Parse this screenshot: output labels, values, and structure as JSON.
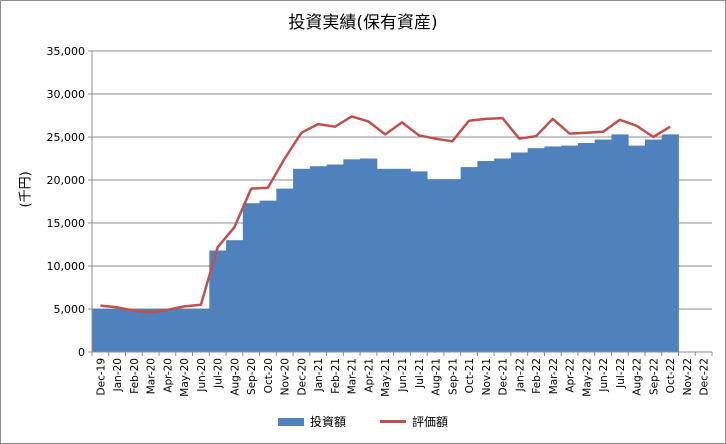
{
  "chart_data": {
    "type": "bar",
    "title": "投資実績(保有資産)",
    "ylabel": "(千円)",
    "xlabel": "",
    "ylim": [
      0,
      35000
    ],
    "yticks": [
      0,
      5000,
      10000,
      15000,
      20000,
      25000,
      30000,
      35000
    ],
    "ytick_labels": [
      "0",
      "5,000",
      "10,000",
      "15,000",
      "20,000",
      "25,000",
      "30,000",
      "35,000"
    ],
    "grid": true,
    "legend_position": "bottom",
    "categories": [
      "Dec-19",
      "Jan-20",
      "Feb-20",
      "Mar-20",
      "Apr-20",
      "May-20",
      "Jun-20",
      "Jul-20",
      "Aug-20",
      "Sep-20",
      "Oct-20",
      "Nov-20",
      "Dec-20",
      "Jan-21",
      "Feb-21",
      "Mar-21",
      "Apr-21",
      "May-21",
      "Jun-21",
      "Jul-21",
      "Aug-21",
      "Sep-21",
      "Oct-21",
      "Nov-21",
      "Dec-21",
      "Jan-22",
      "Feb-22",
      "Mar-22",
      "Apr-22",
      "May-22",
      "Jun-22",
      "Jul-22",
      "Aug-22",
      "Sep-22",
      "Oct-22",
      "Nov-22",
      "Dec-22"
    ],
    "series": [
      {
        "name": "投資額",
        "kind": "bar",
        "color": "#4f81bd",
        "values": [
          5000,
          5000,
          5000,
          5000,
          5000,
          5000,
          5000,
          11800,
          13000,
          17300,
          17600,
          19000,
          21300,
          21600,
          21800,
          22400,
          22500,
          21300,
          21300,
          21000,
          20100,
          20100,
          21500,
          22200,
          22500,
          23200,
          23700,
          23900,
          24000,
          24300,
          24700,
          25300,
          24000,
          24700,
          25300,
          null,
          null
        ]
      },
      {
        "name": "評価額",
        "kind": "line",
        "color": "#c0504d",
        "values": [
          5400,
          5200,
          4800,
          4600,
          4900,
          5300,
          5500,
          12200,
          14500,
          19000,
          19100,
          22500,
          25500,
          26500,
          26200,
          27400,
          26800,
          25300,
          26700,
          25200,
          24800,
          24500,
          26900,
          27100,
          27200,
          24800,
          25100,
          27100,
          25400,
          25500,
          25600,
          27000,
          26300,
          25000,
          26200,
          null,
          null
        ]
      }
    ]
  }
}
